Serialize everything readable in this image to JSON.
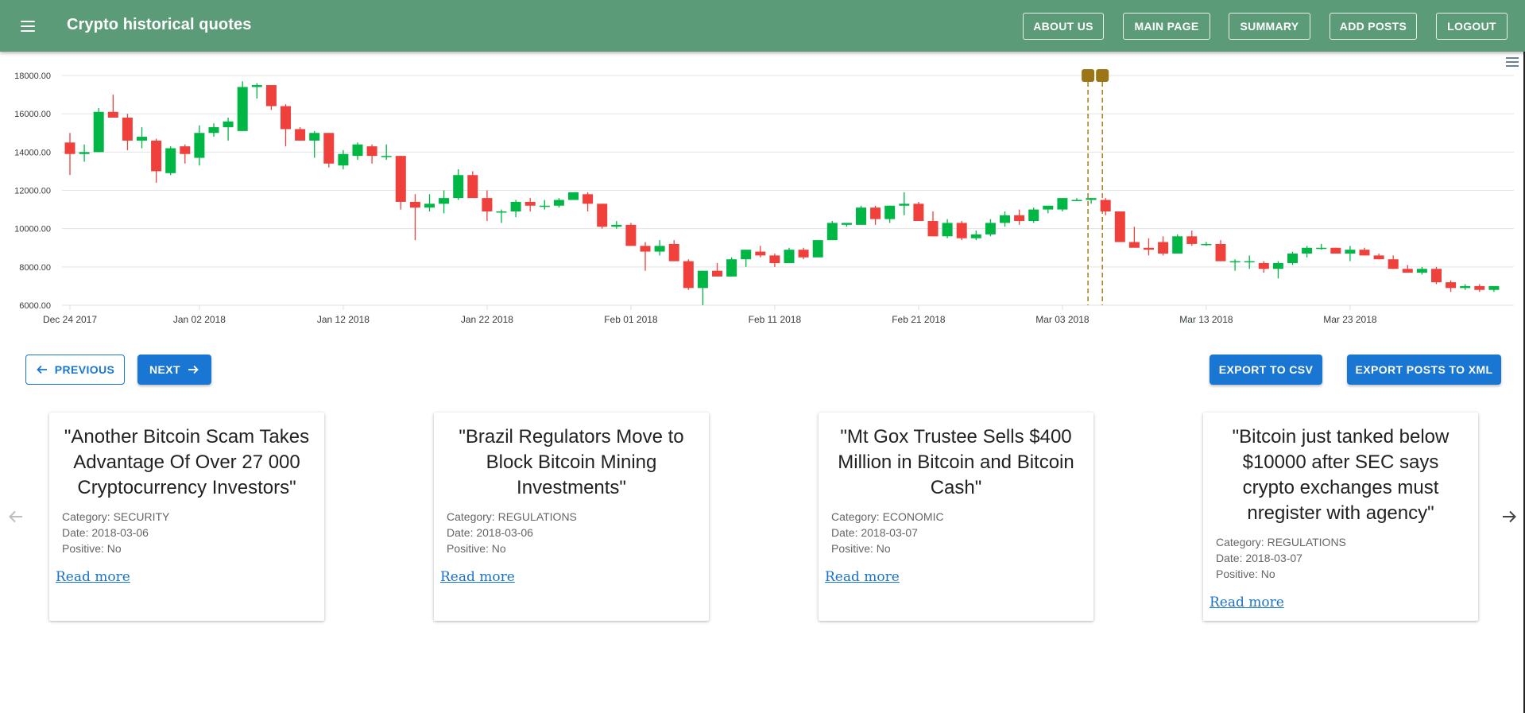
{
  "app": {
    "title": "Crypto historical quotes"
  },
  "nav": [
    "ABOUT US",
    "MAIN PAGE",
    "SUMMARY",
    "ADD POSTS",
    "LOGOUT"
  ],
  "chart_data": {
    "type": "candlestick",
    "y_ticks": [
      "18000.00",
      "16000.00",
      "14000.00",
      "12000.00",
      "10000.00",
      "8000.00",
      "6000.00"
    ],
    "x_ticks": [
      "Dec 24 2017",
      "Jan 02 2018",
      "Jan 12 2018",
      "Jan 22 2018",
      "Feb 01 2018",
      "Feb 11 2018",
      "Feb 21 2018",
      "Mar 03 2018",
      "Mar 13 2018",
      "Mar 23 2018"
    ],
    "ylim": [
      6000,
      18000
    ],
    "up_color": "#00b746",
    "down_color": "#ef403c",
    "start_date": "2017-12-24",
    "candles": [
      [
        14500,
        15000,
        12800,
        13900
      ],
      [
        13900,
        14400,
        13500,
        14000
      ],
      [
        14000,
        16300,
        14000,
        16100
      ],
      [
        16100,
        17000,
        15800,
        15800
      ],
      [
        15800,
        16000,
        14100,
        14600
      ],
      [
        14600,
        15300,
        14200,
        14800
      ],
      [
        14600,
        14700,
        12400,
        13000
      ],
      [
        12900,
        14300,
        12800,
        14200
      ],
      [
        14300,
        14400,
        13400,
        13900
      ],
      [
        13700,
        15400,
        13300,
        15000
      ],
      [
        15000,
        15500,
        14800,
        15300
      ],
      [
        15300,
        15800,
        14600,
        15600
      ],
      [
        15100,
        17700,
        15100,
        17400
      ],
      [
        17400,
        17600,
        16800,
        17500
      ],
      [
        17500,
        17500,
        16200,
        16400
      ],
      [
        16400,
        16500,
        14300,
        15200
      ],
      [
        15200,
        15300,
        14600,
        14600
      ],
      [
        14600,
        15100,
        13700,
        15000
      ],
      [
        15000,
        15000,
        13200,
        13400
      ],
      [
        13300,
        14100,
        13100,
        13900
      ],
      [
        13800,
        14500,
        13600,
        14400
      ],
      [
        14300,
        14400,
        13400,
        13800
      ],
      [
        13800,
        14400,
        13600,
        13800
      ],
      [
        13800,
        13800,
        11000,
        11400
      ],
      [
        11400,
        11800,
        9400,
        11100
      ],
      [
        11100,
        11800,
        10900,
        11300
      ],
      [
        11300,
        12000,
        10800,
        11600
      ],
      [
        11600,
        13100,
        11500,
        12800
      ],
      [
        12800,
        13000,
        11700,
        11600
      ],
      [
        11600,
        12000,
        10400,
        10900
      ],
      [
        10900,
        11000,
        10300,
        10900
      ],
      [
        10900,
        11500,
        10600,
        11400
      ],
      [
        11400,
        11600,
        10900,
        11200
      ],
      [
        11200,
        11500,
        11000,
        11200
      ],
      [
        11200,
        11600,
        11100,
        11500
      ],
      [
        11500,
        11900,
        11500,
        11900
      ],
      [
        11800,
        11900,
        10900,
        11300
      ],
      [
        11300,
        11300,
        10000,
        10100
      ],
      [
        10100,
        10400,
        10000,
        10200
      ],
      [
        10200,
        10300,
        9200,
        9100
      ],
      [
        9100,
        9300,
        7800,
        8800
      ],
      [
        8800,
        9400,
        8600,
        9100
      ],
      [
        9200,
        9400,
        8300,
        8300
      ],
      [
        8300,
        8400,
        6800,
        6900
      ],
      [
        6900,
        7800,
        6000,
        7800
      ],
      [
        7800,
        8200,
        7500,
        7500
      ],
      [
        7500,
        8500,
        7500,
        8400
      ],
      [
        8400,
        8900,
        8000,
        8900
      ],
      [
        8800,
        9100,
        8500,
        8600
      ],
      [
        8600,
        8700,
        8000,
        8200
      ],
      [
        8200,
        9000,
        8200,
        8900
      ],
      [
        8900,
        9000,
        8400,
        8500
      ],
      [
        8500,
        9400,
        8500,
        9400
      ],
      [
        9400,
        10400,
        9400,
        10300
      ],
      [
        10200,
        10300,
        10100,
        10300
      ],
      [
        10200,
        11200,
        10200,
        11100
      ],
      [
        11100,
        11200,
        10200,
        10500
      ],
      [
        10500,
        11200,
        10300,
        11200
      ],
      [
        11200,
        11900,
        10700,
        11300
      ],
      [
        11300,
        11400,
        10400,
        10400
      ],
      [
        10400,
        10900,
        9600,
        9600
      ],
      [
        9600,
        10500,
        9500,
        10300
      ],
      [
        10300,
        10400,
        9400,
        9500
      ],
      [
        9500,
        9900,
        9400,
        9700
      ],
      [
        9700,
        10500,
        9600,
        10300
      ],
      [
        10300,
        10900,
        10100,
        10700
      ],
      [
        10700,
        11000,
        10200,
        10400
      ],
      [
        10400,
        11100,
        10300,
        11000
      ],
      [
        11000,
        11100,
        10800,
        11200
      ],
      [
        11000,
        11600,
        10900,
        11600
      ],
      [
        11500,
        11600,
        11500,
        11500
      ],
      [
        11500,
        11600,
        11300,
        11600
      ],
      [
        11500,
        11600,
        10700,
        10900
      ],
      [
        10900,
        10900,
        9300,
        9300
      ],
      [
        9300,
        10100,
        9100,
        9000
      ],
      [
        9000,
        9500,
        8600,
        8900
      ],
      [
        9300,
        9600,
        8600,
        8700
      ],
      [
        8700,
        9700,
        8700,
        9600
      ],
      [
        9600,
        9900,
        9100,
        9200
      ],
      [
        9200,
        9300,
        9100,
        9200
      ],
      [
        9200,
        9400,
        8300,
        8300
      ],
      [
        8300,
        8400,
        7800,
        8300
      ],
      [
        8300,
        8600,
        7900,
        8300
      ],
      [
        8200,
        8300,
        7700,
        7900
      ],
      [
        7900,
        8300,
        7400,
        8200
      ],
      [
        8200,
        8800,
        8100,
        8700
      ],
      [
        8700,
        9100,
        8500,
        9000
      ],
      [
        9000,
        9200,
        8900,
        9000
      ],
      [
        9000,
        9000,
        8700,
        8700
      ],
      [
        8700,
        9100,
        8300,
        8900
      ],
      [
        8900,
        9000,
        8600,
        8600
      ],
      [
        8600,
        8700,
        8400,
        8400
      ],
      [
        8400,
        8600,
        7900,
        7900
      ],
      [
        7900,
        8100,
        7700,
        7700
      ],
      [
        7700,
        8000,
        7600,
        7900
      ],
      [
        7900,
        8000,
        7100,
        7200
      ],
      [
        7200,
        7300,
        6700,
        6900
      ],
      [
        6900,
        7100,
        6800,
        7000
      ],
      [
        7000,
        7100,
        6700,
        6800
      ],
      [
        6800,
        7000,
        6700,
        7000
      ]
    ],
    "annotation_markers": 2
  },
  "actions": {
    "previous": "PREVIOUS",
    "next": "NEXT",
    "export_csv": "EXPORT TO CSV",
    "export_xml": "EXPORT POSTS TO XML"
  },
  "posts": [
    {
      "title": "\"Another Bitcoin Scam Takes Advantage Of Over 27 000 Cryptocurrency Investors\"",
      "category": "Category: SECURITY",
      "date": "Date: 2018-03-06",
      "positive": "Positive: No",
      "link": "Read more"
    },
    {
      "title": "\"Brazil Regulators Move to Block Bitcoin Mining Investments\"",
      "category": "Category: REGULATIONS",
      "date": "Date: 2018-03-06",
      "positive": "Positive: No",
      "link": "Read more"
    },
    {
      "title": "\"Mt Gox Trustee Sells $400 Million in Bitcoin and Bitcoin Cash\"",
      "category": "Category: ECONOMIC",
      "date": "Date: 2018-03-07",
      "positive": "Positive: No",
      "link": "Read more"
    },
    {
      "title": "\"Bitcoin just tanked below $10000 after SEC says crypto exchanges must nregister with agency\"",
      "category": "Category: REGULATIONS",
      "date": "Date: 2018-03-07",
      "positive": "Positive: No",
      "link": "Read more"
    }
  ]
}
